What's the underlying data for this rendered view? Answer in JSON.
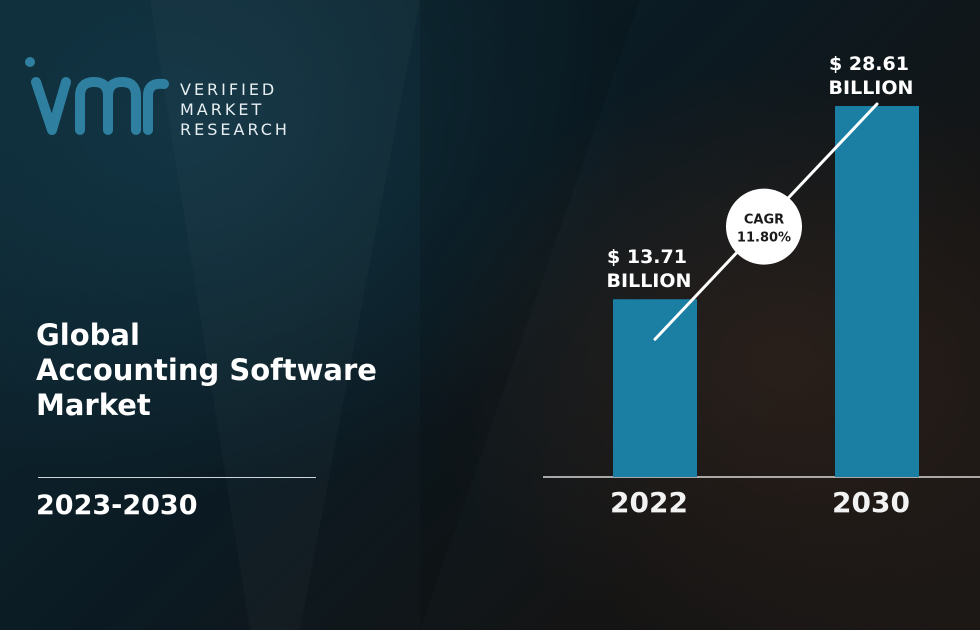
{
  "brand": {
    "line1": "VERIFIED",
    "line2": "MARKET",
    "line3": "RESEARCH",
    "color": "#2e7fa0"
  },
  "title": {
    "line1": "Global",
    "line2": "Accounting Software",
    "line3": "Market"
  },
  "period": "2023-2030",
  "chart_data": {
    "type": "bar",
    "categories": [
      "2022",
      "2030"
    ],
    "values": [
      13.71,
      28.61
    ],
    "value_labels": [
      {
        "line1": "$ 13.71",
        "line2": "BILLION"
      },
      {
        "line1": "$ 28.61",
        "line2": "BILLION"
      }
    ],
    "cagr": {
      "label": "CAGR",
      "value": "11.80%"
    },
    "ylim": [
      0,
      30
    ],
    "bar_color": "#1a7fa3",
    "grid": false
  }
}
